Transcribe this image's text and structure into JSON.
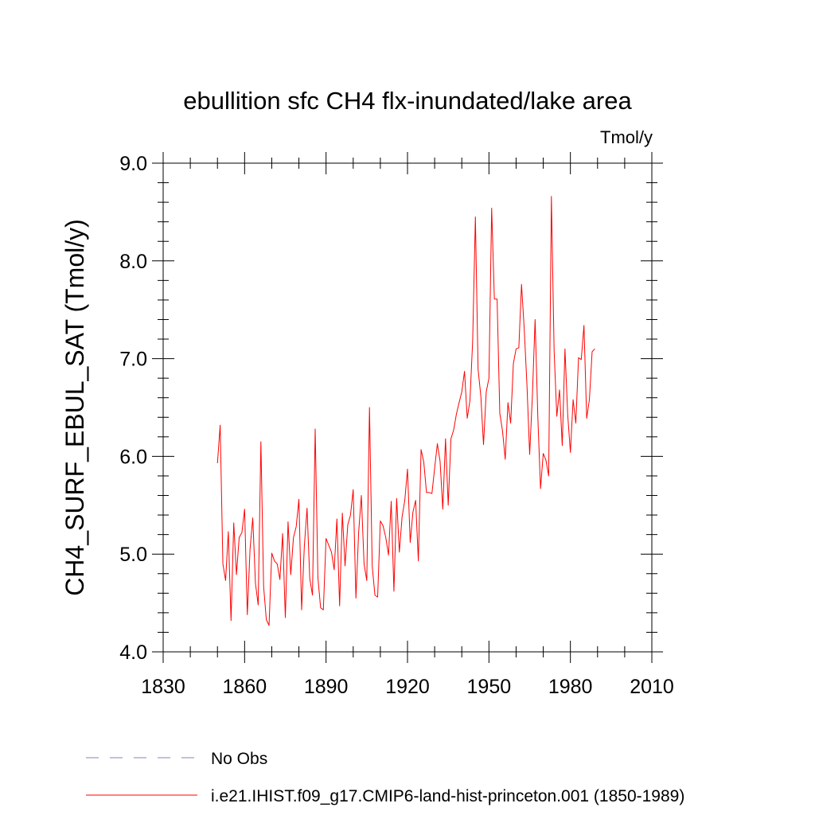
{
  "chart_data": {
    "type": "line",
    "title": "ebullition sfc CH4 flx-inundated/lake area",
    "units_label": "Tmol/y",
    "ylabel": "CH4_SURF_EBUL_SAT  (Tmol/y)",
    "xlabel": "",
    "xlim": [
      1830,
      2010
    ],
    "ylim": [
      4.0,
      9.0
    ],
    "x_ticks": [
      1830,
      1860,
      1890,
      1920,
      1950,
      1980,
      2010
    ],
    "x_tick_labels": [
      "1830",
      "1860",
      "1890",
      "1920",
      "1950",
      "1980",
      "2010"
    ],
    "y_ticks": [
      4.0,
      5.0,
      6.0,
      7.0,
      8.0,
      9.0
    ],
    "y_tick_labels": [
      "4.0",
      "5.0",
      "6.0",
      "7.0",
      "8.0",
      "9.0"
    ],
    "grid": false,
    "legend_position": "bottom",
    "legend": [
      {
        "label": "No Obs",
        "color": "#8080c0",
        "style": "dashed"
      },
      {
        "label": "i.e21.IHIST.f09_g17.CMIP6-land-hist-princeton.001 (1850-1989)",
        "color": "#ff0000",
        "style": "solid"
      }
    ],
    "series": [
      {
        "name": "i.e21.IHIST.f09_g17.CMIP6-land-hist-princeton.001 (1850-1989)",
        "color": "#ff0000",
        "x": [
          1850,
          1851,
          1852,
          1853,
          1854,
          1855,
          1856,
          1857,
          1858,
          1859,
          1860,
          1861,
          1862,
          1863,
          1864,
          1865,
          1866,
          1867,
          1868,
          1869,
          1870,
          1871,
          1872,
          1873,
          1874,
          1875,
          1876,
          1877,
          1878,
          1879,
          1880,
          1881,
          1882,
          1883,
          1884,
          1885,
          1886,
          1887,
          1888,
          1889,
          1890,
          1891,
          1892,
          1893,
          1894,
          1895,
          1896,
          1897,
          1898,
          1899,
          1900,
          1901,
          1902,
          1903,
          1904,
          1905,
          1906,
          1907,
          1908,
          1909,
          1910,
          1911,
          1912,
          1913,
          1914,
          1915,
          1916,
          1917,
          1918,
          1919,
          1920,
          1921,
          1922,
          1923,
          1924,
          1925,
          1926,
          1927,
          1928,
          1929,
          1930,
          1931,
          1932,
          1933,
          1934,
          1935,
          1936,
          1937,
          1938,
          1939,
          1940,
          1941,
          1942,
          1943,
          1944,
          1945,
          1946,
          1947,
          1948,
          1949,
          1950,
          1951,
          1952,
          1953,
          1954,
          1955,
          1956,
          1957,
          1958,
          1959,
          1960,
          1961,
          1962,
          1963,
          1964,
          1965,
          1966,
          1967,
          1968,
          1969,
          1970,
          1971,
          1972,
          1973,
          1974,
          1975,
          1976,
          1977,
          1978,
          1979,
          1980,
          1981,
          1982,
          1983,
          1984,
          1985,
          1986,
          1987,
          1988,
          1989
        ],
        "y": [
          5.93,
          6.32,
          4.9,
          4.73,
          5.23,
          4.32,
          5.32,
          4.79,
          5.17,
          5.22,
          5.46,
          4.38,
          5.05,
          5.37,
          4.7,
          4.48,
          6.15,
          4.67,
          4.33,
          4.27,
          5.01,
          4.93,
          4.9,
          4.74,
          5.21,
          4.35,
          5.33,
          4.79,
          5.17,
          5.28,
          5.56,
          4.43,
          5.08,
          5.47,
          4.75,
          4.58,
          6.28,
          4.76,
          4.45,
          4.43,
          5.16,
          5.09,
          5.02,
          4.84,
          5.36,
          4.47,
          5.42,
          4.88,
          5.3,
          5.4,
          5.66,
          4.55,
          5.22,
          5.6,
          4.9,
          4.73,
          6.5,
          4.88,
          4.58,
          4.56,
          5.34,
          5.29,
          5.17,
          4.99,
          5.54,
          4.62,
          5.57,
          5.02,
          5.38,
          5.55,
          5.87,
          5.12,
          5.43,
          5.55,
          4.93,
          6.07,
          5.94,
          5.63,
          5.63,
          5.62,
          5.88,
          6.13,
          5.95,
          5.46,
          6.18,
          5.5,
          6.18,
          6.27,
          6.43,
          6.55,
          6.66,
          6.87,
          6.39,
          6.57,
          7.18,
          8.45,
          6.89,
          6.62,
          6.12,
          6.66,
          6.8,
          8.54,
          7.61,
          7.61,
          6.44,
          6.26,
          5.97,
          6.55,
          6.34,
          6.95,
          7.1,
          7.11,
          7.76,
          7.3,
          6.73,
          6.02,
          6.62,
          7.4,
          6.41,
          5.67,
          6.03,
          5.96,
          5.8,
          8.66,
          7.08,
          6.41,
          6.68,
          6.11,
          7.1,
          6.43,
          6.04,
          6.58,
          6.34,
          7.01,
          6.99,
          7.34,
          6.39,
          6.58,
          7.07,
          7.1
        ]
      }
    ]
  }
}
